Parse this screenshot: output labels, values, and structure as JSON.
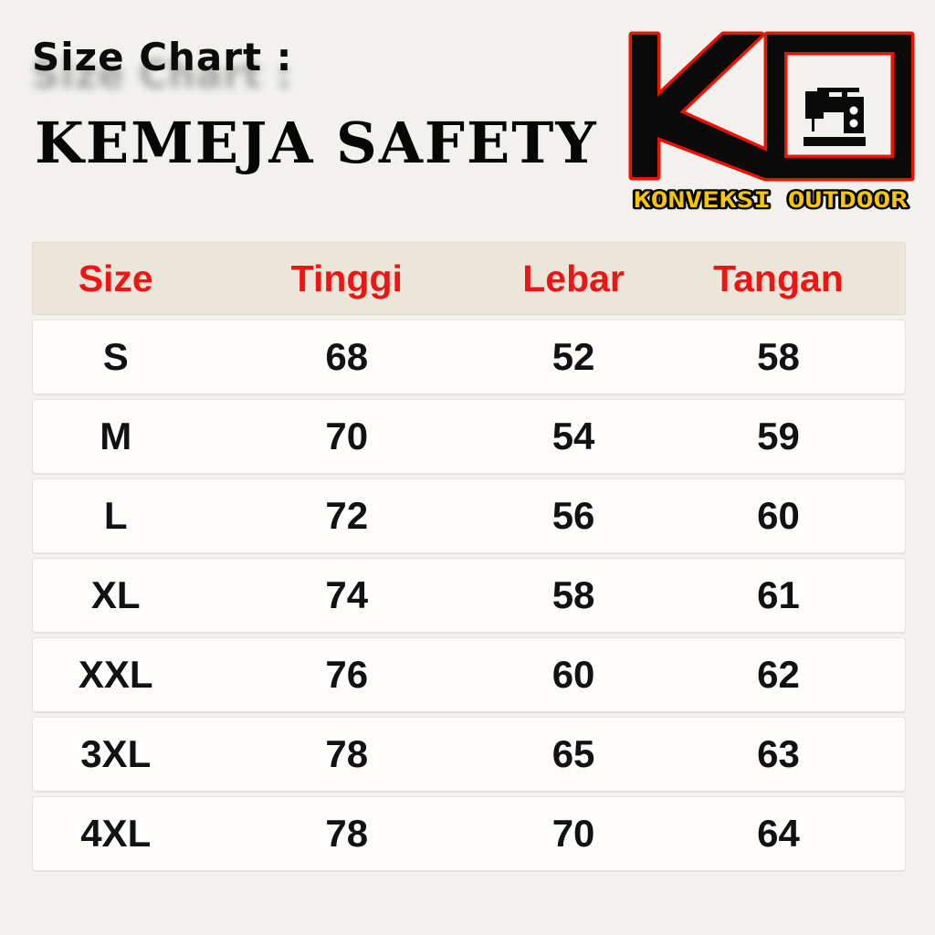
{
  "header": {
    "size_chart_label": "Size Chart :",
    "product_title": "KEMEJA SAFETY"
  },
  "logo": {
    "monogram": "KO",
    "monogram_icon": "ko-monogram-with-sewing-machine-icon",
    "brand_name": "KONVEKSI OUTDOOR",
    "colors": {
      "letter_black": "#0a0a0a",
      "outline_red": "#ee1100",
      "brand_yellow": "#f6c700"
    }
  },
  "chart_data": {
    "type": "table",
    "title": "KEMEJA SAFETY",
    "subtitle": "Size Chart :",
    "columns": [
      "Size",
      "Tinggi",
      "Lebar",
      "Tangan"
    ],
    "rows": [
      [
        "S",
        "68",
        "52",
        "58"
      ],
      [
        "M",
        "70",
        "54",
        "59"
      ],
      [
        "L",
        "72",
        "56",
        "60"
      ],
      [
        "XL",
        "74",
        "58",
        "61"
      ],
      [
        "XXL",
        "76",
        "60",
        "62"
      ],
      [
        "3XL",
        "78",
        "65",
        "63"
      ],
      [
        "4XL",
        "78",
        "70",
        "64"
      ]
    ],
    "layout": {
      "header_bg": "#ebe6d9",
      "header_text_color": "#ee1512",
      "row_bg": "#fefdfb",
      "page_bg": "#f2f1ee",
      "value_text_color": "#121212"
    }
  }
}
